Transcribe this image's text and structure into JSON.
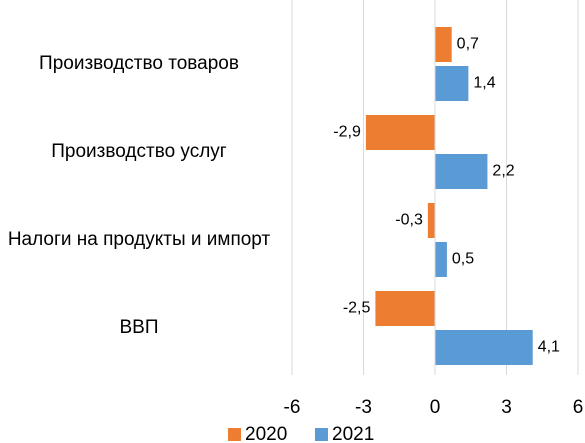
{
  "chart_data": {
    "type": "barh",
    "categories": [
      "Производство товаров",
      "Производство услуг",
      "Налоги на продукты и импорт",
      "ВВП"
    ],
    "series": [
      {
        "name": "2020",
        "color": "#ed7d31",
        "values": [
          0.7,
          -2.9,
          -0.3,
          -2.5
        ],
        "value_labels": [
          "0,7",
          "-2,9",
          "-0,3",
          "-2,5"
        ]
      },
      {
        "name": "2021",
        "color": "#5b9bd5",
        "values": [
          1.4,
          2.2,
          0.5,
          4.1
        ],
        "value_labels": [
          "1,4",
          "2,2",
          "0,5",
          "4,1"
        ]
      }
    ],
    "xlim": [
      -6,
      6
    ],
    "xticks": [
      -6,
      -3,
      0,
      3,
      6
    ],
    "grid": true,
    "legend": "bottom"
  }
}
